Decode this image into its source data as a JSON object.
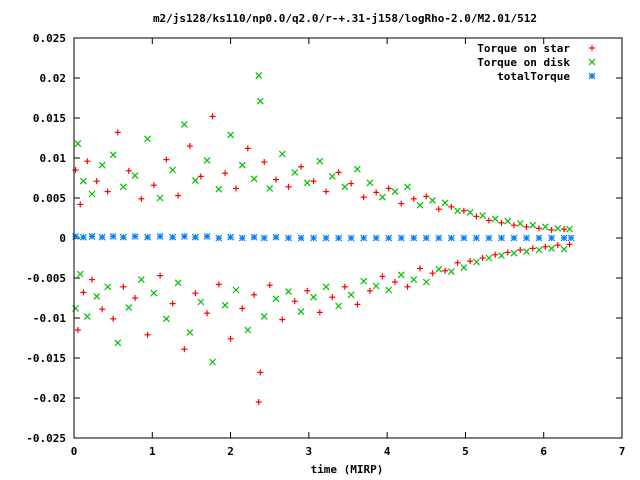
{
  "chart_data": {
    "type": "scatter",
    "title": "m2/js128/ks110/np0.0/q2.0/r-+.31-j158/logRho-2.0/M2.01/512",
    "xlabel": "time (MIRP)",
    "ylabel": "",
    "xlim": [
      0,
      7
    ],
    "ylim": [
      -0.025,
      0.025
    ],
    "xticks": [
      "0",
      "1",
      "2",
      "3",
      "4",
      "5",
      "6",
      "7"
    ],
    "yticks": [
      "-0.025",
      "-0.02",
      "-0.015",
      "-0.01",
      "-0.005",
      "0",
      "0.005",
      "0.01",
      "0.015",
      "0.02",
      "0.025"
    ],
    "legend_position": "top-right",
    "series": [
      {
        "name": "Torque on star",
        "marker": "plus",
        "color": "#ff0000",
        "points": [
          [
            0.02,
            0.0085
          ],
          [
            0.05,
            -0.0115
          ],
          [
            0.08,
            0.0042
          ],
          [
            0.12,
            -0.0068
          ],
          [
            0.17,
            0.0096
          ],
          [
            0.23,
            -0.0052
          ],
          [
            0.29,
            0.0071
          ],
          [
            0.36,
            -0.0089
          ],
          [
            0.43,
            0.0058
          ],
          [
            0.5,
            -0.0101
          ],
          [
            0.56,
            0.0132
          ],
          [
            0.63,
            -0.0061
          ],
          [
            0.7,
            0.0084
          ],
          [
            0.78,
            -0.0075
          ],
          [
            0.86,
            0.0049
          ],
          [
            0.94,
            -0.0121
          ],
          [
            1.02,
            0.0066
          ],
          [
            1.1,
            -0.0047
          ],
          [
            1.18,
            0.0098
          ],
          [
            1.26,
            -0.0082
          ],
          [
            1.33,
            0.0053
          ],
          [
            1.41,
            -0.0139
          ],
          [
            1.48,
            0.0115
          ],
          [
            1.55,
            -0.0069
          ],
          [
            1.62,
            0.0077
          ],
          [
            1.7,
            -0.0094
          ],
          [
            1.77,
            0.0152
          ],
          [
            1.85,
            -0.0058
          ],
          [
            1.93,
            0.0081
          ],
          [
            2.0,
            -0.0126
          ],
          [
            2.07,
            0.0062
          ],
          [
            2.15,
            -0.0088
          ],
          [
            2.22,
            0.0112
          ],
          [
            2.3,
            -0.0071
          ],
          [
            2.36,
            -0.0205
          ],
          [
            2.38,
            -0.0168
          ],
          [
            2.43,
            0.0095
          ],
          [
            2.5,
            -0.0059
          ],
          [
            2.58,
            0.0073
          ],
          [
            2.66,
            -0.0102
          ],
          [
            2.74,
            0.0064
          ],
          [
            2.82,
            -0.0079
          ],
          [
            2.9,
            0.0089
          ],
          [
            2.98,
            -0.0066
          ],
          [
            3.06,
            0.0071
          ],
          [
            3.14,
            -0.0093
          ],
          [
            3.22,
            0.0058
          ],
          [
            3.3,
            -0.0074
          ],
          [
            3.38,
            0.0082
          ],
          [
            3.46,
            -0.0061
          ],
          [
            3.54,
            0.0068
          ],
          [
            3.62,
            -0.0083
          ],
          [
            3.7,
            0.0051
          ],
          [
            3.78,
            -0.0066
          ],
          [
            3.86,
            0.0057
          ],
          [
            3.94,
            -0.0048
          ],
          [
            4.02,
            0.0062
          ],
          [
            4.1,
            -0.0055
          ],
          [
            4.18,
            0.0043
          ],
          [
            4.26,
            -0.0061
          ],
          [
            4.34,
            0.0049
          ],
          [
            4.42,
            -0.0038
          ],
          [
            4.5,
            0.0052
          ],
          [
            4.58,
            -0.0044
          ],
          [
            4.66,
            0.0036
          ],
          [
            4.74,
            -0.0041
          ],
          [
            4.82,
            0.0039
          ],
          [
            4.9,
            -0.0031
          ],
          [
            4.98,
            0.0034
          ],
          [
            5.06,
            -0.0029
          ],
          [
            5.14,
            0.0027
          ],
          [
            5.22,
            -0.0025
          ],
          [
            5.3,
            0.0022
          ],
          [
            5.38,
            -0.0021
          ],
          [
            5.46,
            0.0019
          ],
          [
            5.54,
            -0.0018
          ],
          [
            5.62,
            0.0016
          ],
          [
            5.7,
            -0.0015
          ],
          [
            5.78,
            0.0014
          ],
          [
            5.86,
            -0.0013
          ],
          [
            5.94,
            0.0012
          ],
          [
            6.02,
            -0.0011
          ],
          [
            6.1,
            0.001
          ],
          [
            6.18,
            -0.0009
          ],
          [
            6.26,
            0.0011
          ],
          [
            6.33,
            -0.0008
          ]
        ]
      },
      {
        "name": "Torque on disk",
        "marker": "cross",
        "color": "#00c000",
        "points": [
          [
            0.02,
            -0.0088
          ],
          [
            0.05,
            0.0118
          ],
          [
            0.08,
            -0.0045
          ],
          [
            0.12,
            0.0071
          ],
          [
            0.17,
            -0.0098
          ],
          [
            0.23,
            0.0055
          ],
          [
            0.29,
            -0.0073
          ],
          [
            0.36,
            0.0091
          ],
          [
            0.43,
            -0.0061
          ],
          [
            0.5,
            0.0104
          ],
          [
            0.56,
            -0.0131
          ],
          [
            0.63,
            0.0064
          ],
          [
            0.7,
            -0.0087
          ],
          [
            0.78,
            0.0078
          ],
          [
            0.86,
            -0.0052
          ],
          [
            0.94,
            0.0124
          ],
          [
            1.02,
            -0.0069
          ],
          [
            1.1,
            0.005
          ],
          [
            1.18,
            -0.0101
          ],
          [
            1.26,
            0.0085
          ],
          [
            1.33,
            -0.0056
          ],
          [
            1.41,
            0.0142
          ],
          [
            1.48,
            -0.0118
          ],
          [
            1.55,
            0.0072
          ],
          [
            1.62,
            -0.008
          ],
          [
            1.7,
            0.0097
          ],
          [
            1.77,
            -0.0155
          ],
          [
            1.85,
            0.0061
          ],
          [
            1.93,
            -0.0084
          ],
          [
            2.0,
            0.0129
          ],
          [
            2.07,
            -0.0065
          ],
          [
            2.15,
            0.0091
          ],
          [
            2.22,
            -0.0115
          ],
          [
            2.3,
            0.0074
          ],
          [
            2.36,
            0.0203
          ],
          [
            2.38,
            0.0171
          ],
          [
            2.43,
            -0.0098
          ],
          [
            2.5,
            0.0062
          ],
          [
            2.58,
            -0.0076
          ],
          [
            2.66,
            0.0105
          ],
          [
            2.74,
            -0.0067
          ],
          [
            2.82,
            0.0082
          ],
          [
            2.9,
            -0.0092
          ],
          [
            2.98,
            0.0069
          ],
          [
            3.06,
            -0.0074
          ],
          [
            3.14,
            0.0096
          ],
          [
            3.22,
            -0.0061
          ],
          [
            3.3,
            0.0077
          ],
          [
            3.38,
            -0.0085
          ],
          [
            3.46,
            0.0064
          ],
          [
            3.54,
            -0.0071
          ],
          [
            3.62,
            0.0086
          ],
          [
            3.7,
            -0.0054
          ],
          [
            3.78,
            0.0069
          ],
          [
            3.86,
            -0.006
          ],
          [
            3.94,
            0.0051
          ],
          [
            4.02,
            -0.0065
          ],
          [
            4.1,
            0.0058
          ],
          [
            4.18,
            -0.0046
          ],
          [
            4.26,
            0.0064
          ],
          [
            4.34,
            -0.0052
          ],
          [
            4.42,
            0.0041
          ],
          [
            4.5,
            -0.0055
          ],
          [
            4.58,
            0.0047
          ],
          [
            4.66,
            -0.0039
          ],
          [
            4.74,
            0.0044
          ],
          [
            4.82,
            -0.0042
          ],
          [
            4.9,
            0.0034
          ],
          [
            4.98,
            -0.0037
          ],
          [
            5.06,
            0.0032
          ],
          [
            5.14,
            -0.003
          ],
          [
            5.22,
            0.0028
          ],
          [
            5.3,
            -0.0025
          ],
          [
            5.38,
            0.0024
          ],
          [
            5.46,
            -0.0022
          ],
          [
            5.54,
            0.0021
          ],
          [
            5.62,
            -0.0019
          ],
          [
            5.7,
            0.0018
          ],
          [
            5.78,
            -0.0017
          ],
          [
            5.86,
            0.0016
          ],
          [
            5.94,
            -0.0015
          ],
          [
            6.02,
            0.0014
          ],
          [
            6.1,
            -0.0013
          ],
          [
            6.18,
            0.0012
          ],
          [
            6.26,
            -0.0014
          ],
          [
            6.33,
            0.0011
          ]
        ]
      },
      {
        "name": "totalTorque",
        "marker": "star",
        "color": "#0080ff",
        "points": [
          [
            0.02,
            0.0002
          ],
          [
            0.12,
            0.0001
          ],
          [
            0.23,
            0.0002
          ],
          [
            0.36,
            0.0001
          ],
          [
            0.5,
            0.0002
          ],
          [
            0.63,
            0.0001
          ],
          [
            0.78,
            0.0002
          ],
          [
            0.94,
            0.0001
          ],
          [
            1.1,
            0.0002
          ],
          [
            1.26,
            0.0001
          ],
          [
            1.41,
            0.0002
          ],
          [
            1.55,
            0.0001
          ],
          [
            1.7,
            0.0002
          ],
          [
            1.85,
            0.0
          ],
          [
            2.0,
            0.0001
          ],
          [
            2.15,
            0.0
          ],
          [
            2.3,
            0.0001
          ],
          [
            2.43,
            0.0
          ],
          [
            2.58,
            0.0001
          ],
          [
            2.74,
            0.0
          ],
          [
            2.9,
            0.0
          ],
          [
            3.06,
            0.0
          ],
          [
            3.22,
            0.0
          ],
          [
            3.38,
            0.0
          ],
          [
            3.54,
            0.0
          ],
          [
            3.7,
            0.0
          ],
          [
            3.86,
            0.0
          ],
          [
            4.02,
            0.0
          ],
          [
            4.18,
            0.0
          ],
          [
            4.34,
            0.0
          ],
          [
            4.5,
            0.0
          ],
          [
            4.66,
            0.0
          ],
          [
            4.82,
            0.0
          ],
          [
            4.98,
            0.0
          ],
          [
            5.14,
            0.0
          ],
          [
            5.3,
            0.0
          ],
          [
            5.46,
            0.0
          ],
          [
            5.62,
            0.0
          ],
          [
            5.78,
            0.0
          ],
          [
            5.94,
            0.0
          ],
          [
            6.1,
            0.0
          ],
          [
            6.26,
            0.0
          ],
          [
            6.35,
            0.0
          ]
        ]
      }
    ]
  }
}
